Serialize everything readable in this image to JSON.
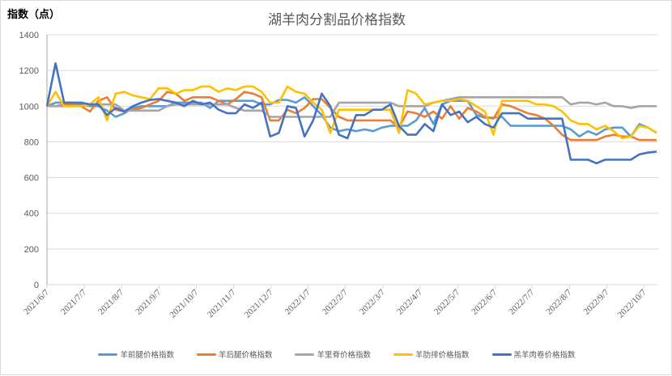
{
  "chart_data": {
    "type": "line",
    "title": "湖羊肉分割品价格指数",
    "ylabel": "指数（点）",
    "xlabel": "",
    "ylim": [
      0,
      1400
    ],
    "yticks": [
      0,
      200,
      400,
      600,
      800,
      1000,
      1200,
      1400
    ],
    "grid": true,
    "legend_position": "bottom",
    "x_tick_labels": [
      "2021/6/7",
      "2021/7/7",
      "2021/8/7",
      "2021/9/7",
      "2021/10/7",
      "2021/11/7",
      "2021/12/7",
      "2022/1/7",
      "2022/2/7",
      "2022/3/7",
      "2022/4/7",
      "2022/5/7",
      "2022/6/7",
      "2022/7/7",
      "2022/8/7",
      "2022/9/7",
      "2022/10/7"
    ],
    "x_start": "2021/6/7",
    "x_interval": "weekly",
    "series": [
      {
        "name": "羊前腿价格指数",
        "color": "#5B9BD5",
        "values": [
          1000,
          1020,
          1020,
          1020,
          1010,
          1000,
          1000,
          975,
          940,
          960,
          990,
          1000,
          1000,
          1000,
          1000,
          1020,
          1020,
          1020,
          1020,
          990,
          1030,
          1030,
          1030,
          1030,
          1030,
          1010,
          1010,
          1035,
          1035,
          1020,
          1050,
          1000,
          950,
          880,
          860,
          870,
          860,
          870,
          860,
          880,
          890,
          890,
          890,
          920,
          990,
          900,
          1010,
          1030,
          1030,
          1030,
          950,
          935,
          935,
          940,
          890,
          890,
          890,
          890,
          890,
          890,
          890,
          870,
          830,
          860,
          840,
          870,
          880,
          880,
          830,
          900,
          880,
          850
        ]
      },
      {
        "name": "羊后腿价格指数",
        "color": "#ED7D31",
        "values": [
          1010,
          1000,
          1010,
          1010,
          1000,
          970,
          1030,
          1050,
          980,
          970,
          980,
          990,
          1010,
          1030,
          1080,
          1070,
          1030,
          1050,
          1050,
          1050,
          1030,
          1010,
          1040,
          1080,
          1070,
          1050,
          920,
          920,
          980,
          960,
          990,
          1040,
          1040,
          990,
          940,
          920,
          920,
          920,
          920,
          920,
          920,
          880,
          970,
          960,
          940,
          970,
          930,
          1000,
          930,
          990,
          970,
          940,
          930,
          1010,
          1000,
          980,
          960,
          950,
          930,
          890,
          840,
          810,
          810,
          810,
          810,
          830,
          840,
          830,
          830,
          810,
          810,
          810
        ]
      },
      {
        "name": "羊里脊价格指数",
        "color": "#A5A5A5",
        "values": [
          1000,
          1000,
          1000,
          1000,
          1000,
          1010,
          1010,
          1010,
          1010,
          975,
          975,
          975,
          975,
          975,
          1000,
          1010,
          1010,
          1010,
          1010,
          1010,
          1010,
          1010,
          990,
          975,
          975,
          975,
          940,
          940,
          940,
          940,
          940,
          940,
          940,
          940,
          1020,
          1020,
          1020,
          1020,
          1020,
          1020,
          1020,
          1000,
          1000,
          1000,
          1000,
          1020,
          1030,
          1040,
          1050,
          1050,
          1050,
          1050,
          1050,
          1050,
          1050,
          1050,
          1050,
          1050,
          1050,
          1050,
          1050,
          1010,
          1020,
          1020,
          1010,
          1020,
          1000,
          1000,
          990,
          1000,
          1000,
          1000
        ]
      },
      {
        "name": "羊肋排价格指数",
        "color": "#FFC000",
        "values": [
          1000,
          1080,
          1000,
          1000,
          1000,
          1010,
          1050,
          920,
          1070,
          1080,
          1060,
          1050,
          1040,
          1100,
          1100,
          1070,
          1090,
          1090,
          1110,
          1110,
          1080,
          1100,
          1090,
          1110,
          1110,
          1080,
          1020,
          1020,
          1110,
          1080,
          1070,
          1020,
          980,
          850,
          980,
          980,
          980,
          980,
          980,
          980,
          980,
          850,
          1090,
          1070,
          1010,
          1020,
          1030,
          1030,
          1040,
          1030,
          1000,
          970,
          840,
          1030,
          1030,
          1030,
          1030,
          1010,
          1010,
          1000,
          970,
          920,
          900,
          900,
          870,
          890,
          860,
          820,
          830,
          890,
          880,
          850
        ]
      },
      {
        "name": "羔羊肉卷价格指数",
        "color": "#4472C4",
        "values": [
          1000,
          1240,
          1020,
          1020,
          1020,
          1010,
          1010,
          950,
          990,
          970,
          1000,
          1020,
          1035,
          1040,
          1030,
          1020,
          1000,
          1030,
          1010,
          1020,
          980,
          960,
          960,
          1010,
          990,
          1020,
          830,
          850,
          1000,
          990,
          830,
          920,
          1070,
          1000,
          840,
          820,
          950,
          950,
          980,
          980,
          1010,
          890,
          840,
          840,
          900,
          860,
          1010,
          950,
          970,
          910,
          940,
          900,
          880,
          960,
          960,
          960,
          930,
          930,
          930,
          930,
          930,
          700,
          700,
          700,
          680,
          700,
          700,
          700,
          700,
          730,
          740,
          745
        ]
      }
    ]
  }
}
